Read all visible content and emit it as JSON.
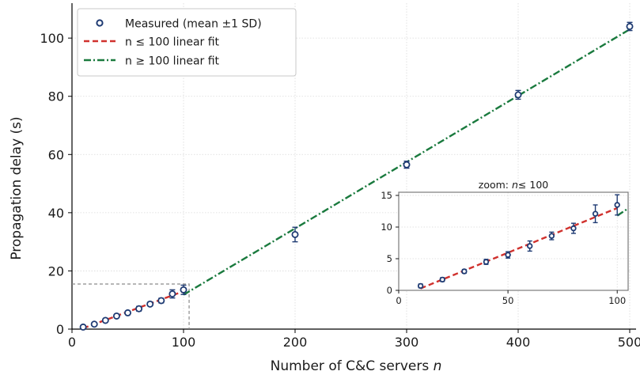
{
  "chart_data": [
    {
      "type": "scatter",
      "xlabel": "Number of C&C servers n",
      "xlabel_prefix": "Number of C&C servers ",
      "xlabel_var": "n",
      "ylabel": "Propagation delay (s)",
      "xlim": [
        0,
        500
      ],
      "ylim": [
        0,
        112
      ],
      "xticks": [
        0,
        100,
        200,
        300,
        400,
        500
      ],
      "yticks": [
        0,
        20,
        40,
        60,
        80,
        100
      ],
      "grid": true,
      "legend_position": "top-left",
      "legend": [
        {
          "label": "Measured (mean ±1 SD)",
          "style": "marker"
        },
        {
          "label": "n ≤ 100 linear fit",
          "style": "dashed"
        },
        {
          "label": "n ≥ 100 linear fit",
          "style": "dashdot"
        }
      ],
      "colors": {
        "measured": "#1f3b73",
        "fit_low": "#d0312d",
        "fit_high": "#1a7a3e",
        "grid": "#d9d9d9"
      },
      "series": [
        {
          "name": "Measured (mean ±1 SD)",
          "kind": "points",
          "x": [
            10,
            20,
            30,
            40,
            50,
            60,
            70,
            80,
            90,
            100,
            200,
            300,
            400,
            500
          ],
          "y": [
            0.7,
            1.7,
            3.0,
            4.5,
            5.6,
            7.0,
            8.6,
            9.8,
            12.1,
            13.5,
            32.5,
            56.5,
            80.5,
            104.0
          ],
          "sd": [
            0.3,
            0.3,
            0.3,
            0.4,
            0.5,
            0.8,
            0.6,
            0.8,
            1.4,
            1.6,
            2.5,
            1.2,
            1.5,
            1.4
          ]
        },
        {
          "name": "n ≤ 100 linear fit",
          "kind": "line",
          "x": [
            10,
            100
          ],
          "y": [
            0.3,
            13.0
          ]
        },
        {
          "name": "n ≥ 100 linear fit",
          "kind": "line",
          "x": [
            100,
            500
          ],
          "y": [
            11.8,
            103.0
          ]
        }
      ],
      "zoom_region": {
        "x": [
          0,
          105
        ],
        "y": [
          0,
          15.5
        ]
      }
    },
    {
      "type": "scatter",
      "title": "zoom: n ≤ 100",
      "title_prefix": "zoom: ",
      "title_var": "n",
      "title_rel": "≤ 100",
      "xlim": [
        0,
        105
      ],
      "ylim": [
        0,
        15.5
      ],
      "xticks": [
        0,
        50,
        100
      ],
      "yticks": [
        0,
        5,
        10,
        15
      ],
      "grid": true,
      "series": [
        {
          "name": "Measured (mean ±1 SD)",
          "kind": "points",
          "x": [
            10,
            20,
            30,
            40,
            50,
            60,
            70,
            80,
            90,
            100
          ],
          "y": [
            0.7,
            1.7,
            3.0,
            4.5,
            5.6,
            7.0,
            8.6,
            9.8,
            12.1,
            13.5
          ],
          "sd": [
            0.3,
            0.3,
            0.3,
            0.4,
            0.5,
            0.8,
            0.6,
            0.8,
            1.4,
            1.6
          ]
        },
        {
          "name": "n ≤ 100 linear fit",
          "kind": "line",
          "x": [
            10,
            100
          ],
          "y": [
            0.3,
            13.0
          ]
        },
        {
          "name": "n ≥ 100 linear fit",
          "kind": "line",
          "x": [
            100,
            105
          ],
          "y": [
            11.8,
            12.95
          ]
        }
      ]
    }
  ]
}
